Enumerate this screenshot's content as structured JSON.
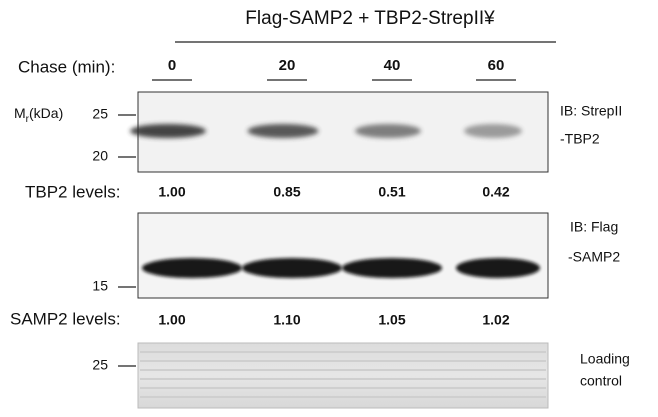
{
  "header": {
    "title": "Flag-SAMP2 + TBP2-StrepII¥"
  },
  "chase": {
    "label": "Chase (min):",
    "lanes": [
      "0",
      "20",
      "40",
      "60"
    ]
  },
  "mr_label": {
    "main": "M",
    "sub": "r",
    "unit": "(kDa)"
  },
  "blot1": {
    "markers": [
      "25",
      "20"
    ],
    "antibody": "IB: StrepII",
    "band": "-TBP2"
  },
  "tbp2_levels": {
    "label": "TBP2 levels:",
    "values": [
      "1.00",
      "0.85",
      "0.51",
      "0.42"
    ]
  },
  "blot2": {
    "markers": [
      "15"
    ],
    "antibody": "IB: Flag",
    "band": "-SAMP2"
  },
  "samp2_levels": {
    "label": "SAMP2 levels:",
    "values": [
      "1.00",
      "1.10",
      "1.05",
      "1.02"
    ]
  },
  "loading": {
    "markers": [
      "25"
    ],
    "label_lines": [
      "Loading",
      "control"
    ]
  }
}
